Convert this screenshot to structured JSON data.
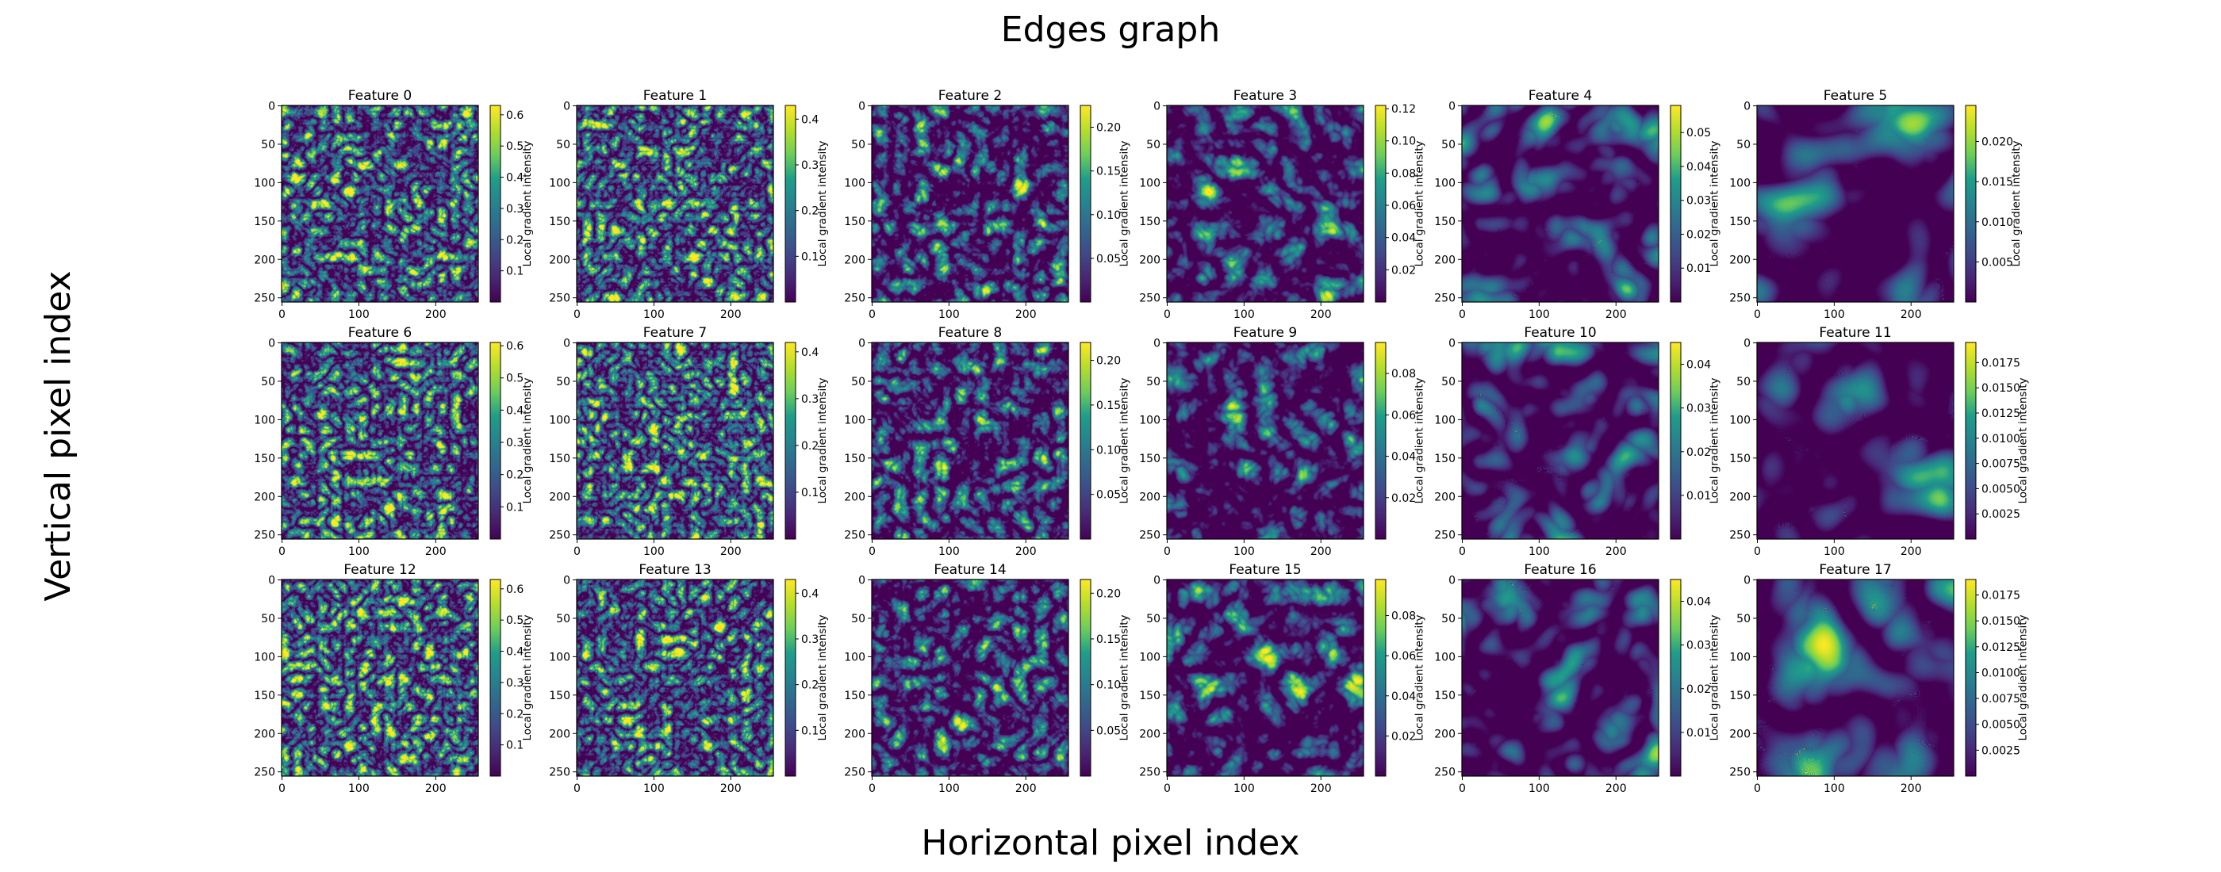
{
  "figure": {
    "title": "Edges graph",
    "xlabel": "Horizontal pixel index",
    "ylabel": "Vertical pixel index"
  },
  "colormap": "viridis",
  "colors": {
    "viridis": [
      "#440154",
      "#482777",
      "#3f4a8a",
      "#31678e",
      "#26838f",
      "#1f9d8a",
      "#6cce5a",
      "#b6de2b",
      "#fee825"
    ],
    "axis": "#000000",
    "background": "#ffffff"
  },
  "chart_data": {
    "type": "heatmap",
    "grid": "3x6",
    "panels": [
      {
        "title": "Feature 0",
        "xticks": [
          "0",
          "100",
          "200"
        ],
        "yticks": [
          "0",
          "50",
          "100",
          "150",
          "200",
          "250"
        ],
        "x_range": [
          0,
          255
        ],
        "y_range": [
          0,
          255
        ],
        "colorbar": {
          "label": "Local gradient intensity",
          "ticks": [
            "0.1",
            "0.2",
            "0.3",
            "0.4",
            "0.5",
            "0.6"
          ],
          "range": [
            0.0,
            0.63
          ]
        },
        "texture": "fine-edges",
        "max_value": 0.63
      },
      {
        "title": "Feature 1",
        "xticks": [
          "0",
          "100",
          "200"
        ],
        "yticks": [
          "0",
          "50",
          "100",
          "150",
          "200",
          "250"
        ],
        "x_range": [
          0,
          255
        ],
        "y_range": [
          0,
          255
        ],
        "colorbar": {
          "label": "Local gradient intensity",
          "ticks": [
            "0.1",
            "0.2",
            "0.3",
            "0.4"
          ],
          "range": [
            0.0,
            0.43
          ]
        },
        "texture": "fine-edges",
        "max_value": 0.43
      },
      {
        "title": "Feature 2",
        "xticks": [
          "0",
          "100",
          "200"
        ],
        "yticks": [
          "0",
          "50",
          "100",
          "150",
          "200",
          "250"
        ],
        "x_range": [
          0,
          255
        ],
        "y_range": [
          0,
          255
        ],
        "colorbar": {
          "label": "Local gradient intensity",
          "ticks": [
            "0.05",
            "0.10",
            "0.15",
            "0.20"
          ],
          "range": [
            0.0,
            0.225
          ]
        },
        "texture": "medium-edges",
        "max_value": 0.225
      },
      {
        "title": "Feature 3",
        "xticks": [
          "0",
          "100",
          "200"
        ],
        "yticks": [
          "0",
          "50",
          "100",
          "150",
          "200",
          "250"
        ],
        "x_range": [
          0,
          255
        ],
        "y_range": [
          0,
          255
        ],
        "colorbar": {
          "label": "Local gradient intensity",
          "ticks": [
            "0.02",
            "0.04",
            "0.06",
            "0.08",
            "0.10",
            "0.12"
          ],
          "range": [
            0.0,
            0.122
          ]
        },
        "texture": "coarse-edges",
        "max_value": 0.122
      },
      {
        "title": "Feature 4",
        "xticks": [
          "0",
          "100",
          "200"
        ],
        "yticks": [
          "0",
          "50",
          "100",
          "150",
          "200",
          "250"
        ],
        "x_range": [
          0,
          255
        ],
        "y_range": [
          0,
          255
        ],
        "colorbar": {
          "label": "Local gradient intensity",
          "ticks": [
            "0.01",
            "0.02",
            "0.03",
            "0.04",
            "0.05"
          ],
          "range": [
            0.0,
            0.058
          ]
        },
        "texture": "blurred",
        "max_value": 0.058
      },
      {
        "title": "Feature 5",
        "xticks": [
          "0",
          "100",
          "200"
        ],
        "yticks": [
          "0",
          "50",
          "100",
          "150",
          "200",
          "250"
        ],
        "x_range": [
          0,
          255
        ],
        "y_range": [
          0,
          255
        ],
        "colorbar": {
          "label": "Local gradient intensity",
          "ticks": [
            "0.005",
            "0.010",
            "0.015",
            "0.020"
          ],
          "range": [
            0.0,
            0.0245
          ]
        },
        "texture": "very-blurred",
        "max_value": 0.0245
      },
      {
        "title": "Feature 6",
        "xticks": [
          "0",
          "100",
          "200"
        ],
        "yticks": [
          "0",
          "50",
          "100",
          "150",
          "200",
          "250"
        ],
        "x_range": [
          0,
          255
        ],
        "y_range": [
          0,
          255
        ],
        "colorbar": {
          "label": "Local gradient intensity",
          "ticks": [
            "0.1",
            "0.2",
            "0.3",
            "0.4",
            "0.5",
            "0.6"
          ],
          "range": [
            0.0,
            0.61
          ]
        },
        "texture": "fine-edges",
        "max_value": 0.61
      },
      {
        "title": "Feature 7",
        "xticks": [
          "0",
          "100",
          "200"
        ],
        "yticks": [
          "0",
          "50",
          "100",
          "150",
          "200",
          "250"
        ],
        "x_range": [
          0,
          255
        ],
        "y_range": [
          0,
          255
        ],
        "colorbar": {
          "label": "Local gradient intensity",
          "ticks": [
            "0.1",
            "0.2",
            "0.3",
            "0.4"
          ],
          "range": [
            0.0,
            0.42
          ]
        },
        "texture": "fine-edges",
        "max_value": 0.42
      },
      {
        "title": "Feature 8",
        "xticks": [
          "0",
          "100",
          "200"
        ],
        "yticks": [
          "0",
          "50",
          "100",
          "150",
          "200",
          "250"
        ],
        "x_range": [
          0,
          255
        ],
        "y_range": [
          0,
          255
        ],
        "colorbar": {
          "label": "Local gradient intensity",
          "ticks": [
            "0.05",
            "0.10",
            "0.15",
            "0.20"
          ],
          "range": [
            0.0,
            0.22
          ]
        },
        "texture": "medium-edges",
        "max_value": 0.22
      },
      {
        "title": "Feature 9",
        "xticks": [
          "0",
          "100",
          "200"
        ],
        "yticks": [
          "0",
          "50",
          "100",
          "150",
          "200",
          "250"
        ],
        "x_range": [
          0,
          255
        ],
        "y_range": [
          0,
          255
        ],
        "colorbar": {
          "label": "Local gradient intensity",
          "ticks": [
            "0.02",
            "0.04",
            "0.06",
            "0.08"
          ],
          "range": [
            0.0,
            0.095
          ]
        },
        "texture": "coarse-edges",
        "max_value": 0.095
      },
      {
        "title": "Feature 10",
        "xticks": [
          "0",
          "100",
          "200"
        ],
        "yticks": [
          "0",
          "50",
          "100",
          "150",
          "200",
          "250"
        ],
        "x_range": [
          0,
          255
        ],
        "y_range": [
          0,
          255
        ],
        "colorbar": {
          "label": "Local gradient intensity",
          "ticks": [
            "0.01",
            "0.02",
            "0.03",
            "0.04"
          ],
          "range": [
            0.0,
            0.045
          ]
        },
        "texture": "blurred",
        "max_value": 0.045
      },
      {
        "title": "Feature 11",
        "xticks": [
          "0",
          "100",
          "200"
        ],
        "yticks": [
          "0",
          "50",
          "100",
          "150",
          "200",
          "250"
        ],
        "x_range": [
          0,
          255
        ],
        "y_range": [
          0,
          255
        ],
        "colorbar": {
          "label": "Local gradient intensity",
          "ticks": [
            "0.0025",
            "0.0050",
            "0.0075",
            "0.0100",
            "0.0125",
            "0.0150",
            "0.0175"
          ],
          "range": [
            0.0,
            0.0195
          ]
        },
        "texture": "very-blurred",
        "max_value": 0.0195
      },
      {
        "title": "Feature 12",
        "xticks": [
          "0",
          "100",
          "200"
        ],
        "yticks": [
          "0",
          "50",
          "100",
          "150",
          "200",
          "250"
        ],
        "x_range": [
          0,
          255
        ],
        "y_range": [
          0,
          255
        ],
        "colorbar": {
          "label": "Local gradient intensity",
          "ticks": [
            "0.1",
            "0.2",
            "0.3",
            "0.4",
            "0.5",
            "0.6"
          ],
          "range": [
            0.0,
            0.63
          ]
        },
        "texture": "fine-edges",
        "max_value": 0.63
      },
      {
        "title": "Feature 13",
        "xticks": [
          "0",
          "100",
          "200"
        ],
        "yticks": [
          "0",
          "50",
          "100",
          "150",
          "200",
          "250"
        ],
        "x_range": [
          0,
          255
        ],
        "y_range": [
          0,
          255
        ],
        "colorbar": {
          "label": "Local gradient intensity",
          "ticks": [
            "0.1",
            "0.2",
            "0.3",
            "0.4"
          ],
          "range": [
            0.0,
            0.43
          ]
        },
        "texture": "fine-edges",
        "max_value": 0.43
      },
      {
        "title": "Feature 14",
        "xticks": [
          "0",
          "100",
          "200"
        ],
        "yticks": [
          "0",
          "50",
          "100",
          "150",
          "200",
          "250"
        ],
        "x_range": [
          0,
          255
        ],
        "y_range": [
          0,
          255
        ],
        "colorbar": {
          "label": "Local gradient intensity",
          "ticks": [
            "0.05",
            "0.10",
            "0.15",
            "0.20"
          ],
          "range": [
            0.0,
            0.215
          ]
        },
        "texture": "medium-edges",
        "max_value": 0.215
      },
      {
        "title": "Feature 15",
        "xticks": [
          "0",
          "100",
          "200"
        ],
        "yticks": [
          "0",
          "50",
          "100",
          "150",
          "200",
          "250"
        ],
        "x_range": [
          0,
          255
        ],
        "y_range": [
          0,
          255
        ],
        "colorbar": {
          "label": "Local gradient intensity",
          "ticks": [
            "0.02",
            "0.04",
            "0.06",
            "0.08"
          ],
          "range": [
            0.0,
            0.098
          ]
        },
        "texture": "coarse-edges",
        "max_value": 0.098
      },
      {
        "title": "Feature 16",
        "xticks": [
          "0",
          "100",
          "200"
        ],
        "yticks": [
          "0",
          "50",
          "100",
          "150",
          "200",
          "250"
        ],
        "x_range": [
          0,
          255
        ],
        "y_range": [
          0,
          255
        ],
        "colorbar": {
          "label": "Local gradient intensity",
          "ticks": [
            "0.01",
            "0.02",
            "0.03",
            "0.04"
          ],
          "range": [
            0.0,
            0.045
          ]
        },
        "texture": "blurred",
        "max_value": 0.045
      },
      {
        "title": "Feature 17",
        "xticks": [
          "0",
          "100",
          "200"
        ],
        "yticks": [
          "0",
          "50",
          "100",
          "150",
          "200",
          "250"
        ],
        "x_range": [
          0,
          255
        ],
        "y_range": [
          0,
          255
        ],
        "colorbar": {
          "label": "Local gradient intensity",
          "ticks": [
            "0.0025",
            "0.0050",
            "0.0075",
            "0.0100",
            "0.0125",
            "0.0150",
            "0.0175"
          ],
          "range": [
            0.0,
            0.019
          ]
        },
        "texture": "very-blurred",
        "max_value": 0.019
      }
    ]
  }
}
